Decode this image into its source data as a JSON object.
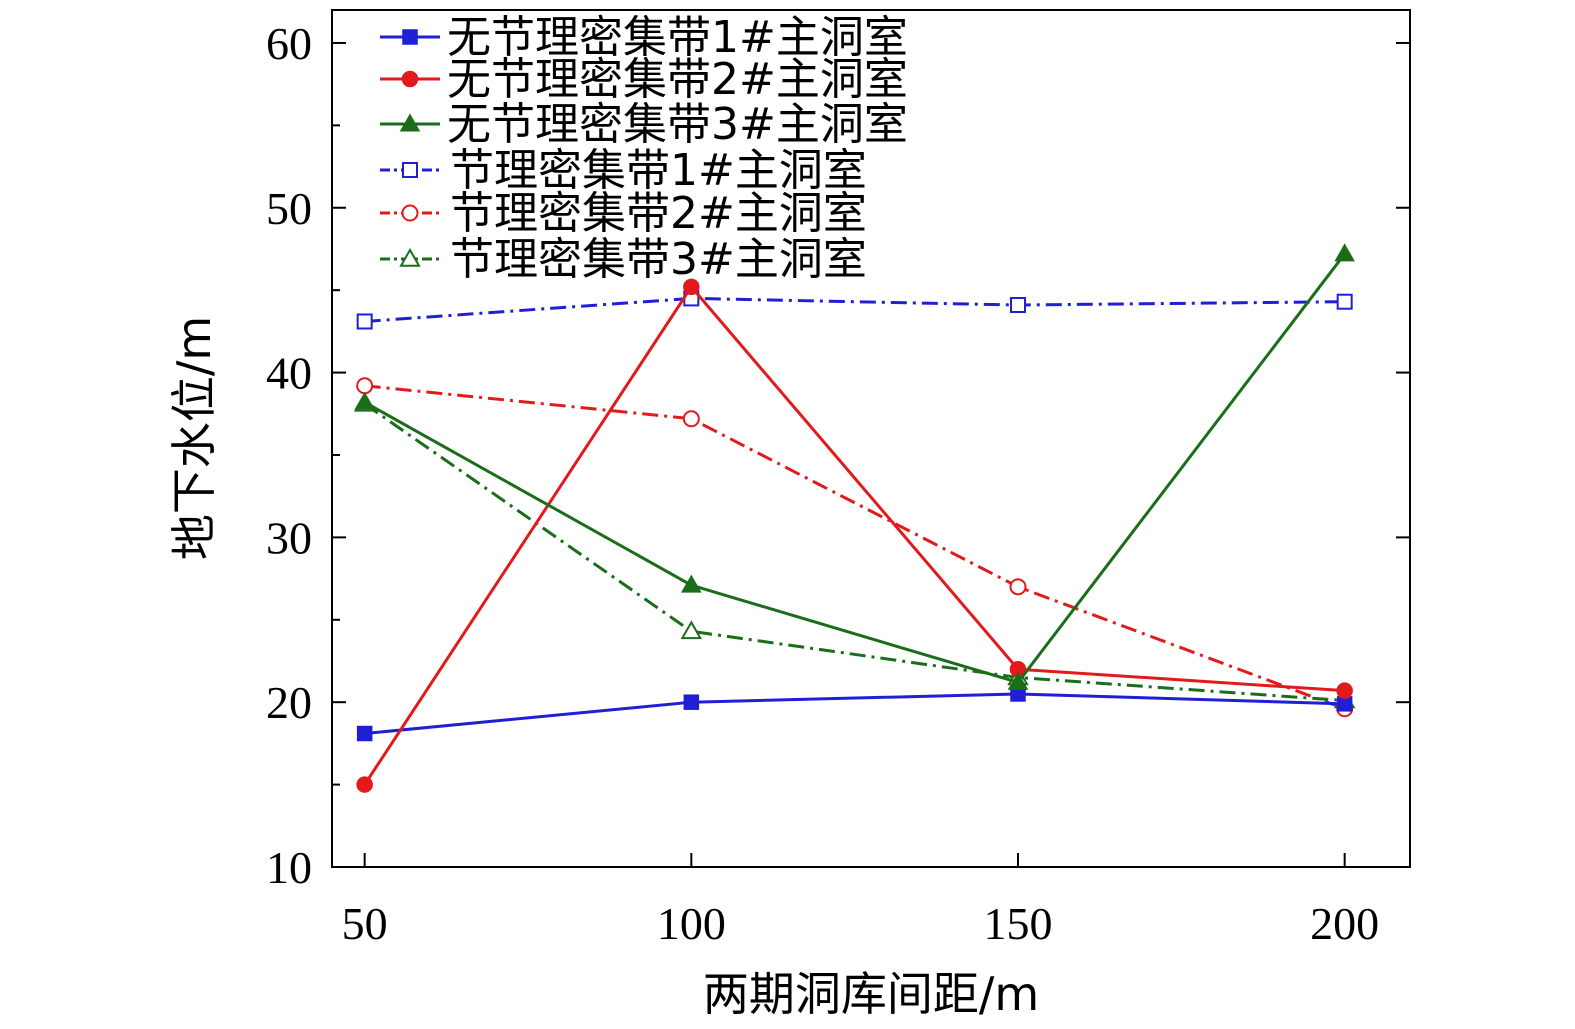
{
  "chart_data": {
    "type": "line",
    "title": "",
    "xlabel": "两期洞库间距/m",
    "ylabel": "地下水位/m",
    "x": [
      50,
      100,
      150,
      200
    ],
    "xlim": [
      45,
      210
    ],
    "ylim": [
      10,
      62
    ],
    "xticks": [
      50,
      100,
      150,
      200
    ],
    "yticks": [
      10,
      20,
      30,
      40,
      50,
      60
    ],
    "grid": false,
    "legend_position": "top-left",
    "series": [
      {
        "name": "无节理密集带1#主洞室",
        "values": [
          18.1,
          20.0,
          20.5,
          19.9
        ],
        "color": "#1f1fd6",
        "marker": "square",
        "filled": true,
        "dash": "solid"
      },
      {
        "name": "无节理密集带2#主洞室",
        "values": [
          15.0,
          45.2,
          22.0,
          20.7
        ],
        "color": "#e31a1c",
        "marker": "circle",
        "filled": true,
        "dash": "solid"
      },
      {
        "name": "无节理密集带3#主洞室",
        "values": [
          38.2,
          27.1,
          21.2,
          47.2
        ],
        "color": "#1a6e1a",
        "marker": "triangle",
        "filled": true,
        "dash": "solid"
      },
      {
        "name": "节理密集带1#主洞室",
        "values": [
          43.1,
          44.5,
          44.1,
          44.3
        ],
        "color": "#1f1fd6",
        "marker": "square",
        "filled": false,
        "dash": "dashdot"
      },
      {
        "name": "节理密集带2#主洞室",
        "values": [
          39.2,
          37.2,
          27.0,
          19.6
        ],
        "color": "#e31a1c",
        "marker": "circle",
        "filled": false,
        "dash": "dashdot"
      },
      {
        "name": "节理密集带3#主洞室",
        "values": [
          38.1,
          24.3,
          21.5,
          20.1
        ],
        "color": "#1a6e1a",
        "marker": "triangle",
        "filled": false,
        "dash": "dashdot"
      }
    ]
  }
}
